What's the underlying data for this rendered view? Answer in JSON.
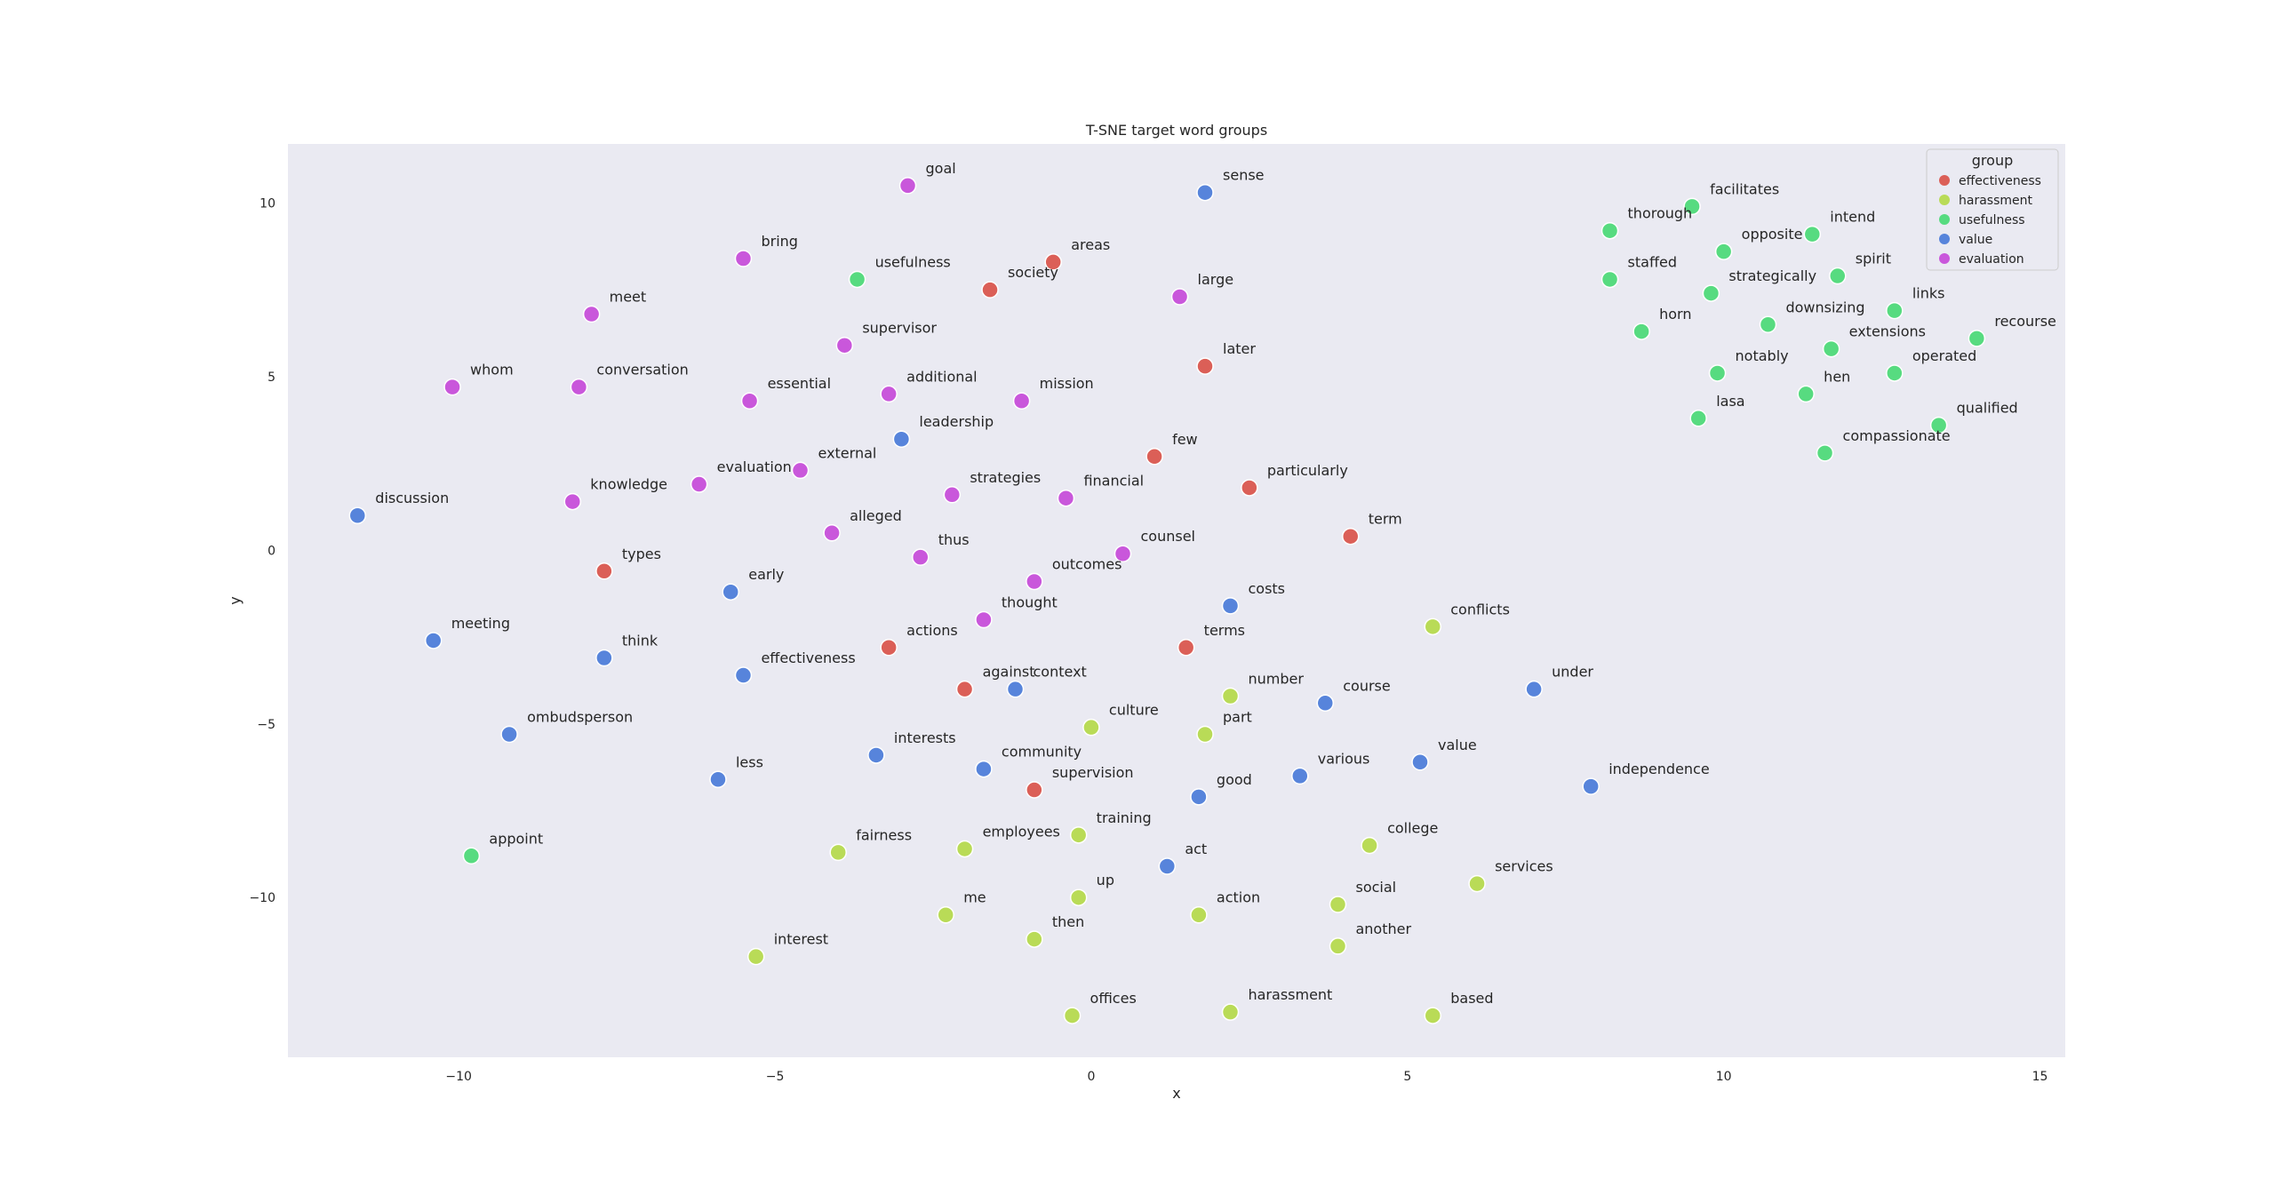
{
  "chart_data": {
    "type": "scatter",
    "title": "T-SNE target word groups",
    "xlabel": "x",
    "ylabel": "y",
    "xlim": [
      -12.7,
      15.4
    ],
    "ylim": [
      -14.6,
      11.7
    ],
    "xticks": [
      -10,
      -5,
      0,
      5,
      10,
      15
    ],
    "yticks": [
      -10,
      -5,
      0,
      5,
      10
    ],
    "grid": false,
    "legend": {
      "title": "group",
      "position": "top-right",
      "entries": [
        "effectiveness",
        "harassment",
        "usefulness",
        "value",
        "evaluation"
      ]
    },
    "colors": {
      "effectiveness": "#db5f57",
      "harassment": "#b9db57",
      "usefulness": "#57db80",
      "value": "#5784db",
      "evaluation": "#c957db"
    },
    "background": "#eaeaf2",
    "points": [
      {
        "word": "goal",
        "group": "evaluation",
        "x": -2.9,
        "y": 10.5
      },
      {
        "word": "sense",
        "group": "value",
        "x": 1.8,
        "y": 10.3
      },
      {
        "word": "bring",
        "group": "evaluation",
        "x": -5.5,
        "y": 8.4
      },
      {
        "word": "usefulness",
        "group": "usefulness",
        "x": -3.7,
        "y": 7.8
      },
      {
        "word": "society",
        "group": "effectiveness",
        "x": -1.6,
        "y": 7.5
      },
      {
        "word": "areas",
        "group": "effectiveness",
        "x": -0.6,
        "y": 8.3
      },
      {
        "word": "large",
        "group": "evaluation",
        "x": 1.4,
        "y": 7.3
      },
      {
        "word": "meet",
        "group": "evaluation",
        "x": -7.9,
        "y": 6.8
      },
      {
        "word": "supervisor",
        "group": "evaluation",
        "x": -3.9,
        "y": 5.9
      },
      {
        "word": "later",
        "group": "effectiveness",
        "x": 1.8,
        "y": 5.3
      },
      {
        "word": "whom",
        "group": "evaluation",
        "x": -10.1,
        "y": 4.7
      },
      {
        "word": "conversation",
        "group": "evaluation",
        "x": -8.1,
        "y": 4.7
      },
      {
        "word": "essential",
        "group": "evaluation",
        "x": -5.4,
        "y": 4.3
      },
      {
        "word": "additional",
        "group": "evaluation",
        "x": -3.2,
        "y": 4.5
      },
      {
        "word": "mission",
        "group": "evaluation",
        "x": -1.1,
        "y": 4.3
      },
      {
        "word": "leadership",
        "group": "value",
        "x": -3.0,
        "y": 3.2
      },
      {
        "word": "few",
        "group": "effectiveness",
        "x": 1.0,
        "y": 2.7
      },
      {
        "word": "particularly",
        "group": "effectiveness",
        "x": 2.5,
        "y": 1.8
      },
      {
        "word": "discussion",
        "group": "value",
        "x": -11.6,
        "y": 1.0
      },
      {
        "word": "knowledge",
        "group": "evaluation",
        "x": -8.2,
        "y": 1.4
      },
      {
        "word": "evaluation",
        "group": "evaluation",
        "x": -6.2,
        "y": 1.9
      },
      {
        "word": "external",
        "group": "evaluation",
        "x": -4.6,
        "y": 2.3
      },
      {
        "word": "strategies",
        "group": "evaluation",
        "x": -2.2,
        "y": 1.6
      },
      {
        "word": "financial",
        "group": "evaluation",
        "x": -0.4,
        "y": 1.5
      },
      {
        "word": "term",
        "group": "effectiveness",
        "x": 4.1,
        "y": 0.4
      },
      {
        "word": "alleged",
        "group": "evaluation",
        "x": -4.1,
        "y": 0.5
      },
      {
        "word": "thus",
        "group": "evaluation",
        "x": -2.7,
        "y": -0.2
      },
      {
        "word": "counsel",
        "group": "evaluation",
        "x": 0.5,
        "y": -0.1
      },
      {
        "word": "types",
        "group": "effectiveness",
        "x": -7.7,
        "y": -0.6
      },
      {
        "word": "early",
        "group": "value",
        "x": -5.7,
        "y": -1.2
      },
      {
        "word": "outcomes",
        "group": "evaluation",
        "x": -0.9,
        "y": -0.9
      },
      {
        "word": "costs",
        "group": "value",
        "x": 2.2,
        "y": -1.6
      },
      {
        "word": "thought",
        "group": "evaluation",
        "x": -1.7,
        "y": -2.0
      },
      {
        "word": "meeting",
        "group": "value",
        "x": -10.4,
        "y": -2.6
      },
      {
        "word": "think",
        "group": "value",
        "x": -7.7,
        "y": -3.1
      },
      {
        "word": "actions",
        "group": "effectiveness",
        "x": -3.2,
        "y": -2.8
      },
      {
        "word": "terms",
        "group": "effectiveness",
        "x": 1.5,
        "y": -2.8
      },
      {
        "word": "conflicts",
        "group": "harassment",
        "x": 5.4,
        "y": -2.2
      },
      {
        "word": "effectiveness",
        "group": "value",
        "x": -5.5,
        "y": -3.6
      },
      {
        "word": "against",
        "group": "effectiveness",
        "x": -2.0,
        "y": -4.0
      },
      {
        "word": "context",
        "group": "value",
        "x": -1.2,
        "y": -4.0
      },
      {
        "word": "under",
        "group": "value",
        "x": 7.0,
        "y": -4.0
      },
      {
        "word": "number",
        "group": "harassment",
        "x": 2.2,
        "y": -4.2
      },
      {
        "word": "course",
        "group": "value",
        "x": 3.7,
        "y": -4.4
      },
      {
        "word": "culture",
        "group": "harassment",
        "x": 0.0,
        "y": -5.1
      },
      {
        "word": "part",
        "group": "harassment",
        "x": 1.8,
        "y": -5.3
      },
      {
        "word": "ombudsperson",
        "group": "value",
        "x": -9.2,
        "y": -5.3
      },
      {
        "word": "interests",
        "group": "value",
        "x": -3.4,
        "y": -5.9
      },
      {
        "word": "value",
        "group": "value",
        "x": 5.2,
        "y": -6.1
      },
      {
        "word": "less",
        "group": "value",
        "x": -5.9,
        "y": -6.6
      },
      {
        "word": "community",
        "group": "value",
        "x": -1.7,
        "y": -6.3
      },
      {
        "word": "various",
        "group": "value",
        "x": 3.3,
        "y": -6.5
      },
      {
        "word": "supervision",
        "group": "effectiveness",
        "x": -0.9,
        "y": -6.9
      },
      {
        "word": "good",
        "group": "value",
        "x": 1.7,
        "y": -7.1
      },
      {
        "word": "independence",
        "group": "value",
        "x": 7.9,
        "y": -6.8
      },
      {
        "word": "appoint",
        "group": "usefulness",
        "x": -9.8,
        "y": -8.8
      },
      {
        "word": "fairness",
        "group": "harassment",
        "x": -4.0,
        "y": -8.7
      },
      {
        "word": "employees",
        "group": "harassment",
        "x": -2.0,
        "y": -8.6
      },
      {
        "word": "training",
        "group": "harassment",
        "x": -0.2,
        "y": -8.2
      },
      {
        "word": "college",
        "group": "harassment",
        "x": 4.4,
        "y": -8.5
      },
      {
        "word": "act",
        "group": "value",
        "x": 1.2,
        "y": -9.1
      },
      {
        "word": "services",
        "group": "harassment",
        "x": 6.1,
        "y": -9.6
      },
      {
        "word": "up",
        "group": "harassment",
        "x": -0.2,
        "y": -10.0
      },
      {
        "word": "me",
        "group": "harassment",
        "x": -2.3,
        "y": -10.5
      },
      {
        "word": "action",
        "group": "harassment",
        "x": 1.7,
        "y": -10.5
      },
      {
        "word": "social",
        "group": "harassment",
        "x": 3.9,
        "y": -10.2
      },
      {
        "word": "then",
        "group": "harassment",
        "x": -0.9,
        "y": -11.2
      },
      {
        "word": "another",
        "group": "harassment",
        "x": 3.9,
        "y": -11.4
      },
      {
        "word": "interest",
        "group": "harassment",
        "x": -5.3,
        "y": -11.7
      },
      {
        "word": "offices",
        "group": "harassment",
        "x": -0.3,
        "y": -13.4
      },
      {
        "word": "harassment",
        "group": "harassment",
        "x": 2.2,
        "y": -13.3
      },
      {
        "word": "based",
        "group": "harassment",
        "x": 5.4,
        "y": -13.4
      },
      {
        "word": "facilitates",
        "group": "usefulness",
        "x": 9.5,
        "y": 9.9
      },
      {
        "word": "thorough",
        "group": "usefulness",
        "x": 8.2,
        "y": 9.2
      },
      {
        "word": "intend",
        "group": "usefulness",
        "x": 11.4,
        "y": 9.1
      },
      {
        "word": "opposite",
        "group": "usefulness",
        "x": 10.0,
        "y": 8.6
      },
      {
        "word": "staffed",
        "group": "usefulness",
        "x": 8.2,
        "y": 7.8
      },
      {
        "word": "strategically",
        "group": "usefulness",
        "x": 9.8,
        "y": 7.4
      },
      {
        "word": "spirit",
        "group": "usefulness",
        "x": 11.8,
        "y": 7.9
      },
      {
        "word": "links",
        "group": "usefulness",
        "x": 12.7,
        "y": 6.9
      },
      {
        "word": "downsizing",
        "group": "usefulness",
        "x": 10.7,
        "y": 6.5
      },
      {
        "word": "horn",
        "group": "usefulness",
        "x": 8.7,
        "y": 6.3
      },
      {
        "word": "recourse",
        "group": "usefulness",
        "x": 14.0,
        "y": 6.1
      },
      {
        "word": "extensions",
        "group": "usefulness",
        "x": 11.7,
        "y": 5.8
      },
      {
        "word": "notably",
        "group": "usefulness",
        "x": 9.9,
        "y": 5.1
      },
      {
        "word": "operated",
        "group": "usefulness",
        "x": 12.7,
        "y": 5.1
      },
      {
        "word": "hen",
        "group": "usefulness",
        "x": 11.3,
        "y": 4.5
      },
      {
        "word": "lasa",
        "group": "usefulness",
        "x": 9.6,
        "y": 3.8
      },
      {
        "word": "qualified",
        "group": "usefulness",
        "x": 13.4,
        "y": 3.6
      },
      {
        "word": "compassionate",
        "group": "usefulness",
        "x": 11.6,
        "y": 2.8
      }
    ]
  }
}
